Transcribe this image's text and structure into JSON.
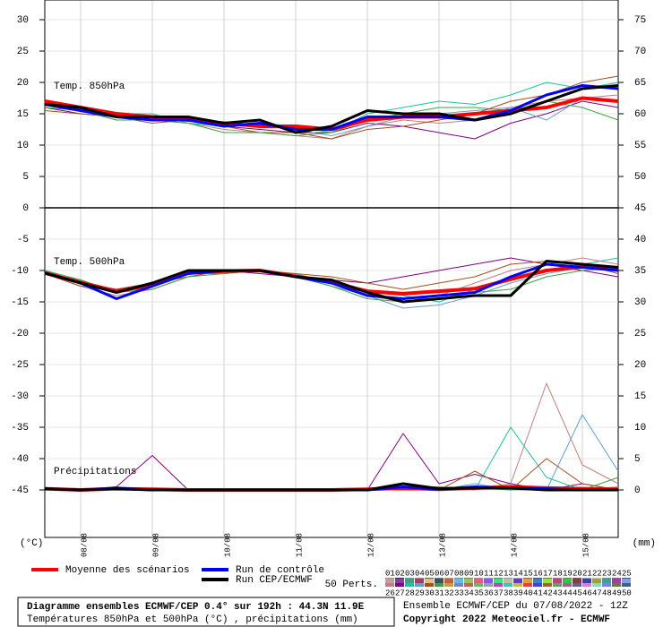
{
  "chart_data": {
    "type": "line",
    "x": [
      0,
      12,
      24,
      36,
      48,
      60,
      72,
      84,
      96,
      108,
      120,
      132,
      144,
      156,
      168,
      180,
      192
    ],
    "xlim": [
      0,
      192
    ],
    "xticks": [
      {
        "value": 12,
        "label": "08/08"
      },
      {
        "value": 36,
        "label": "09/08"
      },
      {
        "value": 60,
        "label": "10/08"
      },
      {
        "value": 84,
        "label": "11/08"
      },
      {
        "value": 108,
        "label": "12/08"
      },
      {
        "value": 132,
        "label": "13/08"
      },
      {
        "value": 156,
        "label": "14/08"
      },
      {
        "value": 180,
        "label": "15/08"
      }
    ],
    "ylim": [
      -52,
      33
    ],
    "yticks": [
      30,
      25,
      20,
      15,
      10,
      5,
      0,
      -5,
      -10,
      -15,
      -20,
      -25,
      -30,
      -35,
      -40,
      -45
    ],
    "y_label": "(°C)",
    "y2lim": [
      -7,
      78
    ],
    "y2ticks": [
      75,
      70,
      65,
      60,
      55,
      50,
      45,
      40,
      35,
      30,
      25,
      20,
      15,
      10,
      5,
      0
    ],
    "y2_label": "(mm)",
    "grid": true,
    "panel_labels": {
      "t850": "Temp. 850hPa",
      "t500": "Temp. 500hPa",
      "precip": "Précipitations"
    },
    "members_label": "50 Perts.",
    "series": [
      {
        "name": "Moyenne des scénarios",
        "color": "#ff0000",
        "width": 4,
        "t850": [
          17,
          16,
          15,
          14.5,
          14,
          13.5,
          13,
          13,
          12.5,
          14,
          14.5,
          14.5,
          15,
          15.5,
          16,
          17.5,
          17
        ],
        "t500": [
          -10.4,
          -11.9,
          -13.3,
          -12.3,
          -10.4,
          -10.1,
          -10,
          -10.9,
          -11.9,
          -13.3,
          -13.7,
          -13.3,
          -12.9,
          -11.4,
          -10,
          -9.4,
          -9.7
        ],
        "precip": [
          0.2,
          0,
          0.2,
          0.1,
          0,
          0,
          0,
          0,
          0,
          0.1,
          0.3,
          0.1,
          0.3,
          0.5,
          0.3,
          0.2,
          0.1
        ]
      },
      {
        "name": "Run de contrôle",
        "color": "#0000ff",
        "width": 3,
        "t850": [
          16.5,
          15.5,
          14.5,
          14,
          14,
          13,
          13.5,
          12.5,
          12.5,
          14.5,
          14.5,
          14.5,
          14,
          15.5,
          18,
          19.5,
          19
        ],
        "t500": [
          -10.4,
          -12,
          -14.5,
          -12.5,
          -10.5,
          -10,
          -10,
          -11,
          -12,
          -14,
          -14.5,
          -14,
          -13.5,
          -11,
          -9,
          -9.5,
          -10
        ],
        "precip": [
          0.2,
          0,
          0.3,
          0,
          0,
          0,
          0,
          0,
          0,
          0,
          0.5,
          0.1,
          0.5,
          0.3,
          0.2,
          0,
          0
        ]
      },
      {
        "name": "Run CEP/ECMWF",
        "color": "#000000",
        "width": 3,
        "t850": [
          16.5,
          16,
          14.5,
          14.5,
          14.5,
          13.5,
          14,
          12,
          13,
          15.5,
          15,
          15,
          14,
          15,
          17,
          19,
          19.5
        ],
        "t500": [
          -10.4,
          -12,
          -13.5,
          -12,
          -10,
          -10,
          -10,
          -11,
          -11.5,
          -13.5,
          -15,
          -14.5,
          -14,
          -14,
          -8.5,
          -9,
          -9.5
        ],
        "precip": [
          0.2,
          0,
          0.2,
          0,
          0,
          0,
          0,
          0,
          0,
          0,
          1,
          0.2,
          0.3,
          0.3,
          0,
          0,
          0
        ]
      }
    ],
    "members": [
      {
        "name": "01",
        "color": "#c08080",
        "t850": [
          17,
          15.5,
          14,
          14,
          13.5,
          12.5,
          12,
          11.5,
          11,
          13,
          14,
          13.5,
          14,
          16,
          17,
          17.5,
          18
        ],
        "t500": [
          -10.5,
          -12.5,
          -14,
          -13,
          -11,
          -10,
          -10,
          -11,
          -12,
          -14,
          -15,
          -14,
          -12,
          -10,
          -9,
          -8,
          -9
        ],
        "precip": [
          0.3,
          0,
          0.5,
          0,
          0,
          0,
          0,
          0,
          0,
          0,
          0,
          0.5,
          0,
          1,
          17,
          4,
          1
        ]
      },
      {
        "name": "02",
        "color": "#800080",
        "t850": [
          16,
          15,
          14.5,
          14,
          14,
          13,
          12.5,
          12,
          12,
          13.5,
          13,
          12,
          11,
          13.5,
          15,
          17,
          16
        ],
        "t500": [
          -10,
          -12,
          -13,
          -12,
          -10.5,
          -10,
          -10.5,
          -11,
          -11.5,
          -12,
          -11,
          -10,
          -9,
          -8,
          -9,
          -10,
          -11
        ],
        "precip": [
          0.2,
          0,
          0.5,
          5.5,
          0,
          0,
          0,
          0,
          0,
          0,
          9,
          1,
          2.5,
          1,
          0,
          1,
          0
        ]
      },
      {
        "name": "03",
        "color": "#20c0a0",
        "t850": [
          16.5,
          16,
          15,
          15,
          13.5,
          13,
          13.5,
          13,
          12,
          15,
          16,
          17,
          16.5,
          18,
          20,
          19,
          20
        ],
        "t500": [
          -10.5,
          -11.5,
          -13.5,
          -12.5,
          -10,
          -10,
          -10,
          -10.5,
          -12,
          -13.5,
          -14,
          -15,
          -13,
          -11,
          -10,
          -9,
          -8
        ],
        "precip": [
          0.2,
          0,
          0.3,
          0,
          0,
          0,
          0,
          0,
          0,
          0,
          0,
          0.5,
          0,
          10,
          2,
          0,
          0.5
        ]
      },
      {
        "name": "04",
        "color": "#60a0d0",
        "t850": [
          17,
          16,
          15,
          14.5,
          14,
          13.5,
          13,
          12.5,
          11.5,
          13,
          14.5,
          15,
          15.5,
          16,
          14,
          17.5,
          17
        ],
        "t500": [
          -10,
          -12,
          -14.5,
          -12,
          -10.5,
          -10.5,
          -10,
          -11,
          -12.5,
          -14,
          -16,
          -15.5,
          -14,
          -12,
          -10.5,
          -9.5,
          -10
        ],
        "precip": [
          0.2,
          0,
          0,
          0,
          0,
          0,
          0,
          0,
          0,
          0,
          0.5,
          0,
          1,
          0,
          0,
          12,
          3
        ]
      },
      {
        "name": "05",
        "color": "#a05020",
        "t850": [
          15.5,
          15,
          14.5,
          13.5,
          14,
          13,
          12,
          12,
          11,
          12.5,
          13,
          14,
          15,
          17,
          18,
          20,
          21
        ],
        "t500": [
          -10.5,
          -12.5,
          -13,
          -12,
          -11,
          -10,
          -10,
          -10.5,
          -11,
          -12,
          -13,
          -12,
          -11,
          -9,
          -8.5,
          -9,
          -10.5
        ],
        "precip": [
          0.3,
          0,
          0.2,
          0,
          0,
          0,
          0,
          0,
          0,
          0,
          0,
          0,
          3,
          0,
          5,
          1,
          0
        ]
      },
      {
        "name": "06",
        "color": "#40a040",
        "t850": [
          16,
          15.5,
          14,
          14,
          13.5,
          12,
          12,
          11.5,
          12,
          14,
          15,
          16,
          16,
          15.5,
          17,
          16,
          14
        ],
        "t500": [
          -10,
          -11.5,
          -13.5,
          -13,
          -11,
          -10.5,
          -10,
          -11,
          -12.5,
          -14.5,
          -15,
          -14.5,
          -13.5,
          -13,
          -11,
          -10,
          -9.5
        ],
        "precip": [
          0.2,
          0,
          0,
          0,
          0,
          0,
          0,
          0,
          0,
          0,
          0.5,
          0.5,
          0.3,
          0,
          0.5,
          0,
          2
        ]
      },
      {
        "name": "07",
        "color": "#c0a040"
      },
      {
        "name": "08",
        "color": "#8080c0"
      },
      {
        "name": "09",
        "color": "#c06060"
      },
      {
        "name": "10",
        "color": "#60c060"
      },
      {
        "name": "11",
        "color": "#a0a0a0"
      },
      {
        "name": "12",
        "color": "#c040c0"
      },
      {
        "name": "13",
        "color": "#40c0c0"
      },
      {
        "name": "14",
        "color": "#c0c040"
      },
      {
        "name": "15",
        "color": "#e04040"
      },
      {
        "name": "16",
        "color": "#4040e0"
      },
      {
        "name": "17",
        "color": "#a06040"
      },
      {
        "name": "18",
        "color": "#60a060"
      },
      {
        "name": "19",
        "color": "#a060a0"
      },
      {
        "name": "20",
        "color": "#6060a0"
      },
      {
        "name": "21",
        "color": "#e080c0"
      },
      {
        "name": "22",
        "color": "#80e0c0"
      },
      {
        "name": "23",
        "color": "#8080e0"
      },
      {
        "name": "24",
        "color": "#608040"
      },
      {
        "name": "25",
        "color": "#406080"
      },
      {
        "name": "26",
        "color": "#c0a0a0"
      },
      {
        "name": "27",
        "color": "#8040a0"
      },
      {
        "name": "28",
        "color": "#40a080"
      },
      {
        "name": "29",
        "color": "#a04060"
      },
      {
        "name": "30",
        "color": "#e0c080"
      },
      {
        "name": "31",
        "color": "#405060"
      },
      {
        "name": "32",
        "color": "#c06040"
      },
      {
        "name": "33",
        "color": "#60c0e0"
      },
      {
        "name": "34",
        "color": "#a0c060"
      },
      {
        "name": "35",
        "color": "#e06080"
      },
      {
        "name": "36",
        "color": "#8060e0"
      },
      {
        "name": "37",
        "color": "#40e080"
      },
      {
        "name": "38",
        "color": "#c0c0a0"
      },
      {
        "name": "39",
        "color": "#6040c0"
      },
      {
        "name": "40",
        "color": "#e0a040"
      },
      {
        "name": "41",
        "color": "#4080c0"
      },
      {
        "name": "42",
        "color": "#a0e040"
      },
      {
        "name": "43",
        "color": "#c04080"
      },
      {
        "name": "44",
        "color": "#40c040"
      },
      {
        "name": "45",
        "color": "#804040"
      },
      {
        "name": "46",
        "color": "#4040a0"
      },
      {
        "name": "47",
        "color": "#a0a040"
      },
      {
        "name": "48",
        "color": "#40a0a0"
      },
      {
        "name": "49",
        "color": "#a040a0"
      },
      {
        "name": "50",
        "color": "#80a0e0"
      }
    ]
  },
  "footer": {
    "title": "Diagramme ensembles ECMWF/CEP 0.4° sur 192h : 44.3N 11.9E",
    "subtitle": "Températures 850hPa et 500hPa (°C) , précipitations (mm)",
    "run": "Ensemble ECMWF/CEP du 07/08/2022 - 12Z",
    "copyright": "Copyright 2022 Meteociel.fr - ECMWF"
  }
}
